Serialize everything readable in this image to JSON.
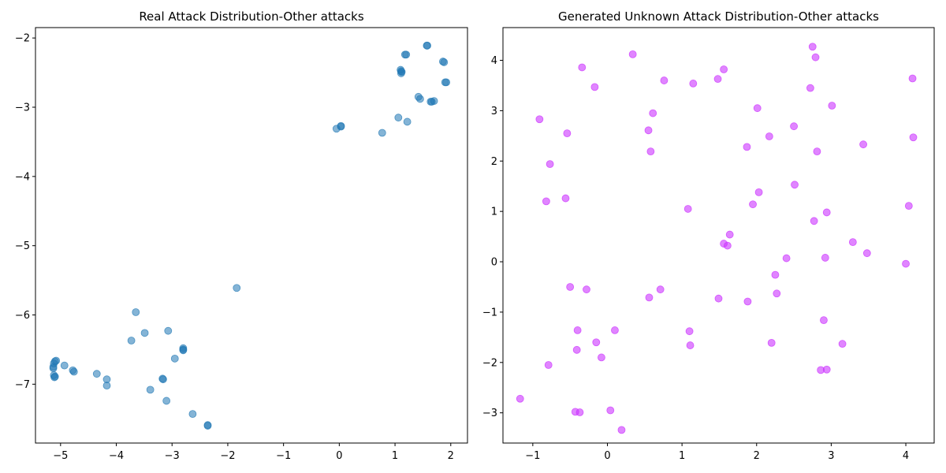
{
  "chart_data": [
    {
      "type": "scatter",
      "title": "Real Attack Distribution-Other attacks",
      "xlabel": "",
      "ylabel": "",
      "xlim": [
        -5.45,
        2.3
      ],
      "ylim": [
        -7.85,
        -1.85
      ],
      "xticks": [
        -5,
        -4,
        -3,
        -2,
        -1,
        0,
        1,
        2
      ],
      "yticks": [
        -7,
        -6,
        -5,
        -4,
        -3,
        -2
      ],
      "grid": false,
      "color": "#1f77b4",
      "opacity": 0.55,
      "points": [
        [
          -5.1,
          -6.67
        ],
        [
          -5.08,
          -6.66
        ],
        [
          -5.12,
          -6.7
        ],
        [
          -5.13,
          -6.75
        ],
        [
          -5.13,
          -6.77
        ],
        [
          -5.12,
          -6.87
        ],
        [
          -5.11,
          -6.9
        ],
        [
          -5.1,
          -6.89
        ],
        [
          -4.93,
          -6.73
        ],
        [
          -4.78,
          -6.8
        ],
        [
          -4.76,
          -6.82
        ],
        [
          -4.35,
          -6.85
        ],
        [
          -4.17,
          -6.93
        ],
        [
          -4.17,
          -7.02
        ],
        [
          -3.73,
          -6.37
        ],
        [
          -3.65,
          -5.96
        ],
        [
          -3.49,
          -6.26
        ],
        [
          -3.39,
          -7.08
        ],
        [
          -3.17,
          -6.92
        ],
        [
          -3.16,
          -6.93
        ],
        [
          -3.1,
          -7.24
        ],
        [
          -3.07,
          -6.23
        ],
        [
          -2.95,
          -6.63
        ],
        [
          -2.8,
          -6.48
        ],
        [
          -2.8,
          -6.5
        ],
        [
          -2.8,
          -6.51
        ],
        [
          -2.63,
          -7.43
        ],
        [
          -2.36,
          -7.59
        ],
        [
          -2.36,
          -7.6
        ],
        [
          -1.84,
          -5.61
        ],
        [
          -0.05,
          -3.31
        ],
        [
          0.03,
          -3.28
        ],
        [
          0.03,
          -3.27
        ],
        [
          0.77,
          -3.37
        ],
        [
          1.06,
          -3.15
        ],
        [
          1.1,
          -2.46
        ],
        [
          1.11,
          -2.48
        ],
        [
          1.11,
          -2.51
        ],
        [
          1.12,
          -2.49
        ],
        [
          1.18,
          -2.24
        ],
        [
          1.2,
          -2.24
        ],
        [
          1.22,
          -3.21
        ],
        [
          1.42,
          -2.85
        ],
        [
          1.45,
          -2.88
        ],
        [
          1.57,
          -2.11
        ],
        [
          1.58,
          -2.11
        ],
        [
          1.64,
          -2.92
        ],
        [
          1.66,
          -2.92
        ],
        [
          1.7,
          -2.91
        ],
        [
          1.86,
          -2.34
        ],
        [
          1.88,
          -2.35
        ],
        [
          1.9,
          -2.64
        ],
        [
          1.92,
          -2.64
        ]
      ]
    },
    {
      "type": "scatter",
      "title": "Generated Unknown Attack Distribution-Other attacks",
      "xlabel": "",
      "ylabel": "",
      "xlim": [
        -1.4,
        4.38
      ],
      "ylim": [
        -3.6,
        4.65
      ],
      "xticks": [
        -1,
        0,
        1,
        2,
        3,
        4
      ],
      "yticks": [
        -3,
        -2,
        -1,
        0,
        1,
        2,
        3,
        4
      ],
      "grid": false,
      "color": "#cc33ff",
      "opacity": 0.6,
      "points": [
        [
          -1.17,
          -2.72
        ],
        [
          -0.91,
          2.83
        ],
        [
          -0.82,
          1.2
        ],
        [
          -0.79,
          -2.05
        ],
        [
          -0.77,
          1.94
        ],
        [
          -0.56,
          1.26
        ],
        [
          -0.54,
          2.55
        ],
        [
          -0.5,
          -0.5
        ],
        [
          -0.43,
          -2.98
        ],
        [
          -0.41,
          -1.75
        ],
        [
          -0.4,
          -1.36
        ],
        [
          -0.37,
          -2.99
        ],
        [
          -0.34,
          3.86
        ],
        [
          -0.28,
          -0.55
        ],
        [
          -0.17,
          3.47
        ],
        [
          -0.15,
          -1.6
        ],
        [
          -0.08,
          -1.9
        ],
        [
          0.04,
          -2.95
        ],
        [
          0.1,
          -1.36
        ],
        [
          0.19,
          -3.34
        ],
        [
          0.34,
          4.12
        ],
        [
          0.55,
          2.61
        ],
        [
          0.56,
          -0.71
        ],
        [
          0.58,
          2.19
        ],
        [
          0.61,
          2.95
        ],
        [
          0.71,
          -0.55
        ],
        [
          0.76,
          3.6
        ],
        [
          1.08,
          1.05
        ],
        [
          1.1,
          -1.38
        ],
        [
          1.11,
          -1.66
        ],
        [
          1.15,
          3.54
        ],
        [
          1.48,
          3.63
        ],
        [
          1.49,
          -0.73
        ],
        [
          1.56,
          3.82
        ],
        [
          1.56,
          0.36
        ],
        [
          1.61,
          0.32
        ],
        [
          1.64,
          0.54
        ],
        [
          1.87,
          2.28
        ],
        [
          1.88,
          -0.79
        ],
        [
          1.95,
          1.14
        ],
        [
          2.01,
          3.05
        ],
        [
          2.03,
          1.38
        ],
        [
          2.17,
          2.49
        ],
        [
          2.2,
          -1.61
        ],
        [
          2.25,
          -0.26
        ],
        [
          2.27,
          -0.63
        ],
        [
          2.4,
          0.07
        ],
        [
          2.5,
          2.69
        ],
        [
          2.51,
          1.53
        ],
        [
          2.72,
          3.45
        ],
        [
          2.75,
          4.27
        ],
        [
          2.77,
          0.81
        ],
        [
          2.79,
          4.06
        ],
        [
          2.81,
          2.19
        ],
        [
          2.86,
          -2.15
        ],
        [
          2.9,
          -1.16
        ],
        [
          2.92,
          0.08
        ],
        [
          2.94,
          0.98
        ],
        [
          2.94,
          -2.14
        ],
        [
          3.01,
          3.1
        ],
        [
          3.15,
          -1.63
        ],
        [
          3.29,
          0.39
        ],
        [
          3.43,
          2.33
        ],
        [
          3.48,
          0.17
        ],
        [
          4.0,
          -0.04
        ],
        [
          4.04,
          1.11
        ],
        [
          4.09,
          3.64
        ],
        [
          4.1,
          2.47
        ]
      ]
    }
  ]
}
